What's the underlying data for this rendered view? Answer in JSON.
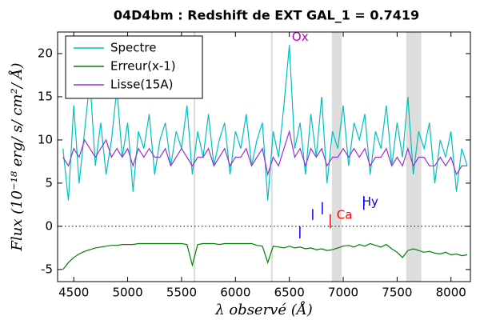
{
  "chart_data": {
    "type": "line",
    "title": "04D4bm : Redshift de EXT GAL_1 = 0.7419",
    "xlabel": "λ observé (Å)",
    "ylabel": "Flux (10⁻¹⁸ erg/ s/ cm²/ Å)",
    "x": [
      4400,
      4450,
      4500,
      4550,
      4600,
      4650,
      4700,
      4750,
      4800,
      4850,
      4900,
      4950,
      5000,
      5050,
      5100,
      5150,
      5200,
      5250,
      5300,
      5350,
      5400,
      5450,
      5500,
      5550,
      5600,
      5650,
      5700,
      5750,
      5800,
      5850,
      5900,
      5950,
      6000,
      6050,
      6100,
      6150,
      6200,
      6250,
      6300,
      6350,
      6400,
      6450,
      6500,
      6550,
      6600,
      6650,
      6700,
      6750,
      6800,
      6850,
      6900,
      6950,
      7000,
      7050,
      7100,
      7150,
      7200,
      7250,
      7300,
      7350,
      7400,
      7450,
      7500,
      7550,
      7600,
      7650,
      7700,
      7750,
      7800,
      7850,
      7900,
      7950,
      8000,
      8050,
      8100,
      8150
    ],
    "series": [
      {
        "name": "Spectre",
        "color": "#00bfbf",
        "values": [
          9,
          3,
          14,
          5,
          11,
          17,
          7,
          12,
          6,
          10,
          16,
          8,
          12,
          4,
          11,
          9,
          13,
          6,
          10,
          12,
          7,
          11,
          9,
          14,
          6,
          11,
          8,
          13,
          7,
          10,
          12,
          6,
          11,
          9,
          13,
          7,
          10,
          12,
          3,
          11,
          8,
          14,
          21,
          9,
          12,
          6,
          13,
          8,
          15,
          5,
          11,
          9,
          14,
          7,
          12,
          10,
          13,
          6,
          11,
          9,
          14,
          7,
          12,
          8,
          15,
          6,
          11,
          9,
          12,
          5,
          10,
          8,
          11,
          4,
          9,
          7
        ]
      },
      {
        "name": "Erreur(x-1)",
        "color": "#008000",
        "values": [
          -5,
          -4.2,
          -3.6,
          -3.2,
          -2.9,
          -2.7,
          -2.5,
          -2.4,
          -2.3,
          -2.2,
          -2.2,
          -2.1,
          -2.1,
          -2.1,
          -2,
          -2,
          -2,
          -2,
          -2,
          -2,
          -2,
          -2,
          -2,
          -2.1,
          -4.5,
          -2.1,
          -2,
          -2,
          -2,
          -2.1,
          -2,
          -2,
          -2,
          -2,
          -2,
          -2,
          -2.2,
          -2.3,
          -4.2,
          -2.3,
          -2.4,
          -2.5,
          -2.3,
          -2.5,
          -2.4,
          -2.6,
          -2.5,
          -2.7,
          -2.6,
          -2.8,
          -2.7,
          -2.5,
          -2.3,
          -2.2,
          -2.4,
          -2.1,
          -2.3,
          -2,
          -2.2,
          -2.4,
          -2.1,
          -2.6,
          -3,
          -3.6,
          -2.8,
          -2.6,
          -2.8,
          -3,
          -2.9,
          -3.1,
          -3.2,
          -3,
          -3.3,
          -3.2,
          -3.4,
          -3.3
        ]
      },
      {
        "name": "Lisse(15A)",
        "color": "#9933cc",
        "values": [
          8,
          7,
          9,
          8,
          10,
          9,
          8,
          9,
          10,
          8,
          9,
          8,
          9,
          7,
          9,
          8,
          9,
          8,
          8,
          9,
          7,
          8,
          9,
          8,
          7,
          8,
          8,
          9,
          7,
          8,
          9,
          7,
          8,
          8,
          9,
          7,
          8,
          9,
          6,
          8,
          7,
          9,
          11,
          8,
          9,
          7,
          9,
          8,
          9,
          7,
          8,
          8,
          9,
          8,
          9,
          8,
          9,
          7,
          8,
          8,
          9,
          7,
          8,
          7,
          9,
          7,
          8,
          8,
          7,
          7,
          8,
          7,
          8,
          6,
          7,
          7
        ]
      }
    ],
    "bands": [
      [
        5612,
        5628
      ],
      [
        6330,
        6346
      ],
      [
        6895,
        6985
      ],
      [
        7584,
        7725
      ]
    ],
    "markers": [
      {
        "x": 6598,
        "y1": 0,
        "y2": -1.4,
        "color": "#0000ff"
      },
      {
        "x": 6717,
        "y1": 2,
        "y2": 0.75,
        "color": "#0000ff"
      },
      {
        "x": 6806,
        "y1": 2.8,
        "y2": 1.4,
        "color": "#0000ff"
      },
      {
        "x": 6880,
        "y1": 1.4,
        "y2": -0.2,
        "color": "#ff0000"
      },
      {
        "x": 7191,
        "y1": 3.5,
        "y2": 1.9,
        "color": "#0000ff"
      }
    ],
    "annotations": [
      {
        "text": "Ox",
        "x": 6524,
        "y": 21.9,
        "color": "#bf00bf"
      },
      {
        "text": "Ca",
        "x": 6939,
        "y": 1.3,
        "color": "#ff0000"
      },
      {
        "text": "Hy",
        "x": 7176,
        "y": 2.8,
        "color": "#0000ff"
      }
    ],
    "xlim": [
      4350,
      8180
    ],
    "xticks": [
      4500,
      5000,
      5500,
      6000,
      6500,
      7000,
      7500,
      8000
    ],
    "ylim": [
      -6.4,
      22.5
    ],
    "yticks": [
      -5,
      0,
      5,
      10,
      15,
      20
    ],
    "legend": "upper left",
    "grid": false
  }
}
